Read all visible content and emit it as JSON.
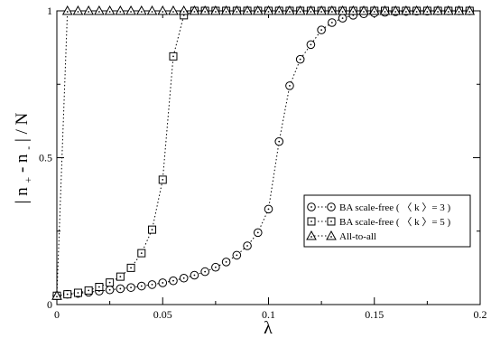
{
  "chart_data": {
    "type": "scatter",
    "title": "",
    "xlabel": "λ",
    "ylabel": "|n₊ - n₋| / N",
    "ylabel_parts": {
      "bar": "|",
      "n1": "n",
      "sub1": "+",
      "minus": " - ",
      "n2": "n",
      "sub2": "-",
      "bar2": "|",
      "slash": " / N"
    },
    "xlim": [
      0,
      0.2
    ],
    "ylim": [
      0,
      1
    ],
    "grid": false,
    "legend_position": "center-right",
    "x_ticks": [
      0,
      0.05,
      0.1,
      0.15,
      0.2
    ],
    "x_tick_labels": [
      "0",
      "0.05",
      "0.1",
      "0.15",
      "0.2"
    ],
    "y_ticks": [
      0,
      0.5,
      1
    ],
    "y_tick_labels": [
      "0",
      "0.5",
      "1"
    ],
    "series": [
      {
        "name": "BA scale-free ( 〈 k 〉= 3 )",
        "marker": "circle",
        "line": "dotted",
        "x": [
          0,
          0.005,
          0.01,
          0.015,
          0.02,
          0.025,
          0.03,
          0.035,
          0.04,
          0.045,
          0.05,
          0.055,
          0.06,
          0.065,
          0.07,
          0.075,
          0.08,
          0.085,
          0.09,
          0.095,
          0.1,
          0.105,
          0.11,
          0.115,
          0.12,
          0.125,
          0.13,
          0.135,
          0.14,
          0.145,
          0.15,
          0.155,
          0.16,
          0.165,
          0.17,
          0.175,
          0.18,
          0.185,
          0.19,
          0.195
        ],
        "y": [
          0.03,
          0.035,
          0.038,
          0.042,
          0.046,
          0.05,
          0.054,
          0.058,
          0.063,
          0.068,
          0.074,
          0.081,
          0.09,
          0.1,
          0.112,
          0.127,
          0.145,
          0.168,
          0.2,
          0.245,
          0.325,
          0.555,
          0.745,
          0.835,
          0.885,
          0.935,
          0.96,
          0.975,
          0.985,
          0.99,
          0.993,
          0.995,
          0.997,
          0.998,
          0.999,
          0.999,
          1.0,
          1.0,
          1.0,
          1.0
        ]
      },
      {
        "name": "BA scale-free ( 〈 k 〉= 5 )",
        "marker": "square",
        "line": "dotted",
        "x": [
          0,
          0.005,
          0.01,
          0.015,
          0.02,
          0.025,
          0.03,
          0.035,
          0.04,
          0.045,
          0.05,
          0.055,
          0.06,
          0.065,
          0.07,
          0.075,
          0.08,
          0.085,
          0.09,
          0.095,
          0.1,
          0.105,
          0.11,
          0.115,
          0.12,
          0.125,
          0.13,
          0.135,
          0.14,
          0.145,
          0.15,
          0.155,
          0.16,
          0.165,
          0.17,
          0.175,
          0.18,
          0.185,
          0.19,
          0.195
        ],
        "y": [
          0.03,
          0.035,
          0.04,
          0.048,
          0.06,
          0.075,
          0.095,
          0.125,
          0.175,
          0.255,
          0.425,
          0.845,
          0.985,
          1.0,
          1.0,
          1.0,
          1.0,
          1.0,
          1.0,
          1.0,
          1.0,
          1.0,
          1.0,
          1.0,
          1.0,
          1.0,
          1.0,
          1.0,
          1.0,
          1.0,
          1.0,
          1.0,
          1.0,
          1.0,
          1.0,
          1.0,
          1.0,
          1.0,
          1.0,
          1.0
        ]
      },
      {
        "name": "All-to-all",
        "marker": "triangle",
        "line": "dotted",
        "x": [
          0,
          0.005,
          0.01,
          0.015,
          0.02,
          0.025,
          0.03,
          0.035,
          0.04,
          0.045,
          0.05,
          0.055,
          0.06,
          0.065,
          0.07,
          0.075,
          0.08,
          0.085,
          0.09,
          0.095,
          0.1,
          0.105,
          0.11,
          0.115,
          0.12,
          0.125,
          0.13,
          0.135,
          0.14,
          0.145,
          0.15,
          0.155,
          0.16,
          0.165,
          0.17,
          0.175,
          0.18,
          0.185,
          0.19,
          0.195
        ],
        "y": [
          0.03,
          1.0,
          1.0,
          1.0,
          1.0,
          1.0,
          1.0,
          1.0,
          1.0,
          1.0,
          1.0,
          1.0,
          1.0,
          1.0,
          1.0,
          1.0,
          1.0,
          1.0,
          1.0,
          1.0,
          1.0,
          1.0,
          1.0,
          1.0,
          1.0,
          1.0,
          1.0,
          1.0,
          1.0,
          1.0,
          1.0,
          1.0,
          1.0,
          1.0,
          1.0,
          1.0,
          1.0,
          1.0,
          1.0,
          1.0
        ]
      }
    ]
  }
}
